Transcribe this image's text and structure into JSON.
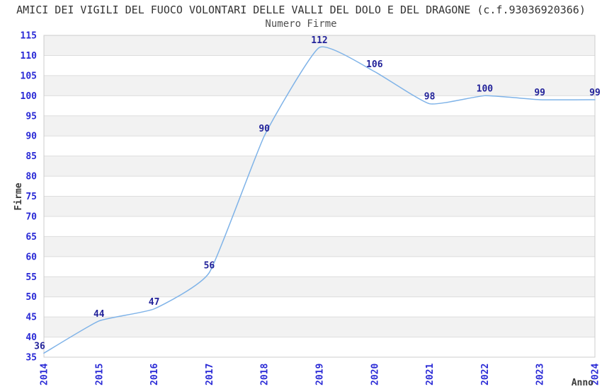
{
  "chart_data": {
    "type": "line",
    "title": "AMICI DEI VIGILI DEL FUOCO VOLONTARI DELLE VALLI DEL DOLO E DEL DRAGONE (c.f.93036920366)",
    "subtitle": "Numero Firme",
    "xlabel": "Anno",
    "ylabel": "Firme",
    "x": [
      2014,
      2015,
      2016,
      2017,
      2018,
      2019,
      2020,
      2021,
      2022,
      2023,
      2024
    ],
    "values": [
      36,
      44,
      47,
      56,
      90,
      112,
      106,
      98,
      100,
      99,
      99
    ],
    "ylim": [
      35,
      115
    ],
    "ytick_step": 5,
    "grid": "horizontal-gridlines-with-alternating-bands",
    "legend": "none",
    "colors": {
      "line": "#7FB3E8",
      "tick_label": "#2A2AD6",
      "data_label": "#23239A",
      "title": "#333333",
      "subtitle": "#4F4F4F",
      "axis_label": "#3A3A3A",
      "band_gray": "#F2F2F2",
      "band_white": "#FFFFFF",
      "gridline": "#DDDDDD",
      "plot_border": "#CCCCCC",
      "background": "#FFFFFF"
    }
  }
}
